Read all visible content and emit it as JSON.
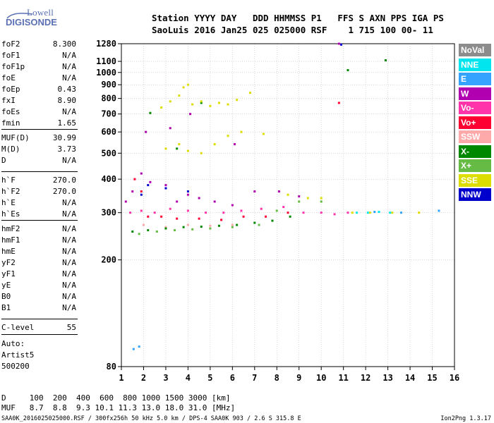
{
  "logo": {
    "line1": "Lowell",
    "line2": "DIGISONDE"
  },
  "header": {
    "row1": "Station YYYY DAY   DDD HHMMSS P1   FFS S AXN PPS IGA PS",
    "row2": "SaoLuis 2016 Jan25 025 025000 RSF    1 715 100 00- 11"
  },
  "params": [
    {
      "k": "foF2",
      "v": "8.300"
    },
    {
      "k": "foF1",
      "v": "N/A"
    },
    {
      "k": "foF1p",
      "v": "N/A"
    },
    {
      "k": "foE",
      "v": "N/A"
    },
    {
      "k": "foEp",
      "v": "0.43"
    },
    {
      "k": "fxI",
      "v": "8.90"
    },
    {
      "k": "foEs",
      "v": "N/A"
    },
    {
      "k": "fmin",
      "v": "1.65"
    },
    {
      "k": "MUF(D)",
      "v": "30.99"
    },
    {
      "k": "M(D)",
      "v": "3.73"
    },
    {
      "k": "D",
      "v": "N/A"
    },
    {
      "k": "h`F",
      "v": "270.0"
    },
    {
      "k": "h`F2",
      "v": "270.0"
    },
    {
      "k": "h`E",
      "v": "N/A"
    },
    {
      "k": "h`Es",
      "v": "N/A"
    },
    {
      "k": "hmF2",
      "v": "N/A"
    },
    {
      "k": "hmF1",
      "v": "N/A"
    },
    {
      "k": "hmE",
      "v": "N/A"
    },
    {
      "k": "yF2",
      "v": "N/A"
    },
    {
      "k": "yF1",
      "v": "N/A"
    },
    {
      "k": "yE",
      "v": "N/A"
    },
    {
      "k": "B0",
      "v": "N/A"
    },
    {
      "k": "B1",
      "v": "N/A"
    },
    {
      "k": "C-level",
      "v": "55"
    }
  ],
  "auto": {
    "line1": "Auto:",
    "line2": "Artist5",
    "line3": "500200"
  },
  "legend": [
    {
      "label": "NoVal",
      "color": "#8c8c8c"
    },
    {
      "label": "NNE",
      "color": "#00e5ee"
    },
    {
      "label": "E",
      "color": "#33a3ff"
    },
    {
      "label": "W",
      "color": "#b000b0"
    },
    {
      "label": "Vo-",
      "color": "#ff33aa"
    },
    {
      "label": "Vo+",
      "color": "#ff0033"
    },
    {
      "label": "SSW",
      "color": "#ffaaaa"
    },
    {
      "label": "X-",
      "color": "#008800"
    },
    {
      "label": "X+",
      "color": "#66bb44"
    },
    {
      "label": "SSE",
      "color": "#dddd00"
    },
    {
      "label": "NNW",
      "color": "#0000cc"
    }
  ],
  "bottom": {
    "row1": "D     100  200  400  600  800 1000 1500 3000 [km]",
    "row2": "MUF   8.7  8.8  9.3 10.1 11.3 13.0 18.0 31.0 [MHz]"
  },
  "footer": {
    "left": "SAA0K_2016025025000.RSF / 300fx256h 50 kHz 5.0 km / DPS-4 SAA0K 903 / 2.6 S 315.8 E",
    "right": "Ion2Png 1.3.17"
  },
  "chart_data": {
    "type": "scatter",
    "title": "",
    "xlabel": "",
    "ylabel": "",
    "xlim": [
      1,
      16
    ],
    "ylim": [
      80,
      1280
    ],
    "y_scale": "log",
    "x_ticks": [
      1,
      2,
      3,
      4,
      5,
      6,
      7,
      8,
      9,
      10,
      11,
      12,
      13,
      14,
      15,
      16
    ],
    "y_ticks": [
      80,
      200,
      300,
      400,
      500,
      600,
      700,
      800,
      900,
      1000,
      1100,
      1280
    ],
    "grid": true,
    "series": [
      {
        "name": "NoVal",
        "color": "#8c8c8c",
        "points": []
      },
      {
        "name": "NNE",
        "color": "#00e5ee",
        "points": [
          [
            11.6,
            300
          ],
          [
            12.1,
            300
          ],
          [
            12.6,
            302
          ],
          [
            13.1,
            300
          ]
        ]
      },
      {
        "name": "E",
        "color": "#33a3ff",
        "points": [
          [
            1.55,
            93
          ],
          [
            1.8,
            95
          ],
          [
            12.4,
            302
          ],
          [
            13.6,
            300
          ],
          [
            15.3,
            305
          ]
        ]
      },
      {
        "name": "W",
        "color": "#b000b0",
        "points": [
          [
            1.2,
            330
          ],
          [
            1.5,
            360
          ],
          [
            1.9,
            420
          ],
          [
            2.3,
            390
          ],
          [
            3.0,
            380
          ],
          [
            3.5,
            330
          ],
          [
            4.0,
            350
          ],
          [
            4.5,
            340
          ],
          [
            5.2,
            330
          ],
          [
            6.0,
            320
          ],
          [
            7.0,
            360
          ],
          [
            8.1,
            360
          ],
          [
            9.0,
            345
          ],
          [
            10.8,
            1280
          ],
          [
            2.1,
            600
          ],
          [
            3.2,
            620
          ],
          [
            4.1,
            700
          ],
          [
            6.1,
            540
          ]
        ]
      },
      {
        "name": "Vo-",
        "color": "#ff33aa",
        "points": [
          [
            1.4,
            300
          ],
          [
            1.9,
            305
          ],
          [
            2.5,
            300
          ],
          [
            3.2,
            310
          ],
          [
            4.0,
            305
          ],
          [
            4.8,
            300
          ],
          [
            5.6,
            300
          ],
          [
            6.4,
            305
          ],
          [
            7.3,
            310
          ],
          [
            8.3,
            315
          ],
          [
            9.2,
            300
          ],
          [
            10.0,
            300
          ],
          [
            10.6,
            296
          ],
          [
            11.2,
            300
          ]
        ]
      },
      {
        "name": "Vo+",
        "color": "#ff0033",
        "points": [
          [
            1.6,
            400
          ],
          [
            1.9,
            360
          ],
          [
            2.2,
            290
          ],
          [
            2.8,
            290
          ],
          [
            3.5,
            285
          ],
          [
            4.5,
            285
          ],
          [
            5.5,
            282
          ],
          [
            6.5,
            290
          ],
          [
            7.5,
            290
          ],
          [
            8.5,
            300
          ],
          [
            10.8,
            770
          ]
        ]
      },
      {
        "name": "SSW",
        "color": "#ffaaaa",
        "points": [
          [
            2.0,
            270
          ],
          [
            3.0,
            265
          ],
          [
            4.0,
            270
          ],
          [
            5.0,
            268
          ],
          [
            6.0,
            270
          ]
        ]
      },
      {
        "name": "X-",
        "color": "#008800",
        "points": [
          [
            1.5,
            255
          ],
          [
            2.2,
            258
          ],
          [
            3.0,
            262
          ],
          [
            3.8,
            265
          ],
          [
            4.6,
            266
          ],
          [
            5.4,
            268
          ],
          [
            6.2,
            270
          ],
          [
            7.0,
            275
          ],
          [
            7.8,
            280
          ],
          [
            8.6,
            290
          ],
          [
            11.2,
            1020
          ],
          [
            12.9,
            1110
          ],
          [
            2.3,
            706
          ],
          [
            3.5,
            520
          ],
          [
            4.6,
            770
          ]
        ]
      },
      {
        "name": "X+",
        "color": "#66bb44",
        "points": [
          [
            1.8,
            250
          ],
          [
            2.6,
            255
          ],
          [
            3.4,
            258
          ],
          [
            4.2,
            260
          ],
          [
            5.0,
            262
          ],
          [
            6.0,
            265
          ],
          [
            7.2,
            270
          ],
          [
            8.0,
            305
          ],
          [
            9.0,
            330
          ],
          [
            10.0,
            330
          ]
        ]
      },
      {
        "name": "SSE",
        "color": "#dddd00",
        "points": [
          [
            2.8,
            740
          ],
          [
            3.2,
            780
          ],
          [
            3.6,
            820
          ],
          [
            3.8,
            880
          ],
          [
            4.0,
            900
          ],
          [
            4.2,
            760
          ],
          [
            4.6,
            780
          ],
          [
            5.0,
            750
          ],
          [
            5.4,
            770
          ],
          [
            5.8,
            760
          ],
          [
            6.2,
            790
          ],
          [
            6.8,
            840
          ],
          [
            3.0,
            520
          ],
          [
            3.6,
            540
          ],
          [
            4.0,
            510
          ],
          [
            4.6,
            500
          ],
          [
            5.2,
            540
          ],
          [
            5.8,
            580
          ],
          [
            6.4,
            600
          ],
          [
            7.4,
            590
          ],
          [
            8.5,
            350
          ],
          [
            9.4,
            340
          ],
          [
            10.0,
            340
          ],
          [
            11.4,
            300
          ],
          [
            12.2,
            300
          ],
          [
            13.2,
            300
          ],
          [
            14.4,
            300
          ]
        ]
      },
      {
        "name": "NNW",
        "color": "#0000cc",
        "points": [
          [
            1.9,
            350
          ],
          [
            2.2,
            380
          ],
          [
            3.0,
            370
          ],
          [
            4.0,
            360
          ],
          [
            10.9,
            1270
          ]
        ]
      }
    ]
  }
}
